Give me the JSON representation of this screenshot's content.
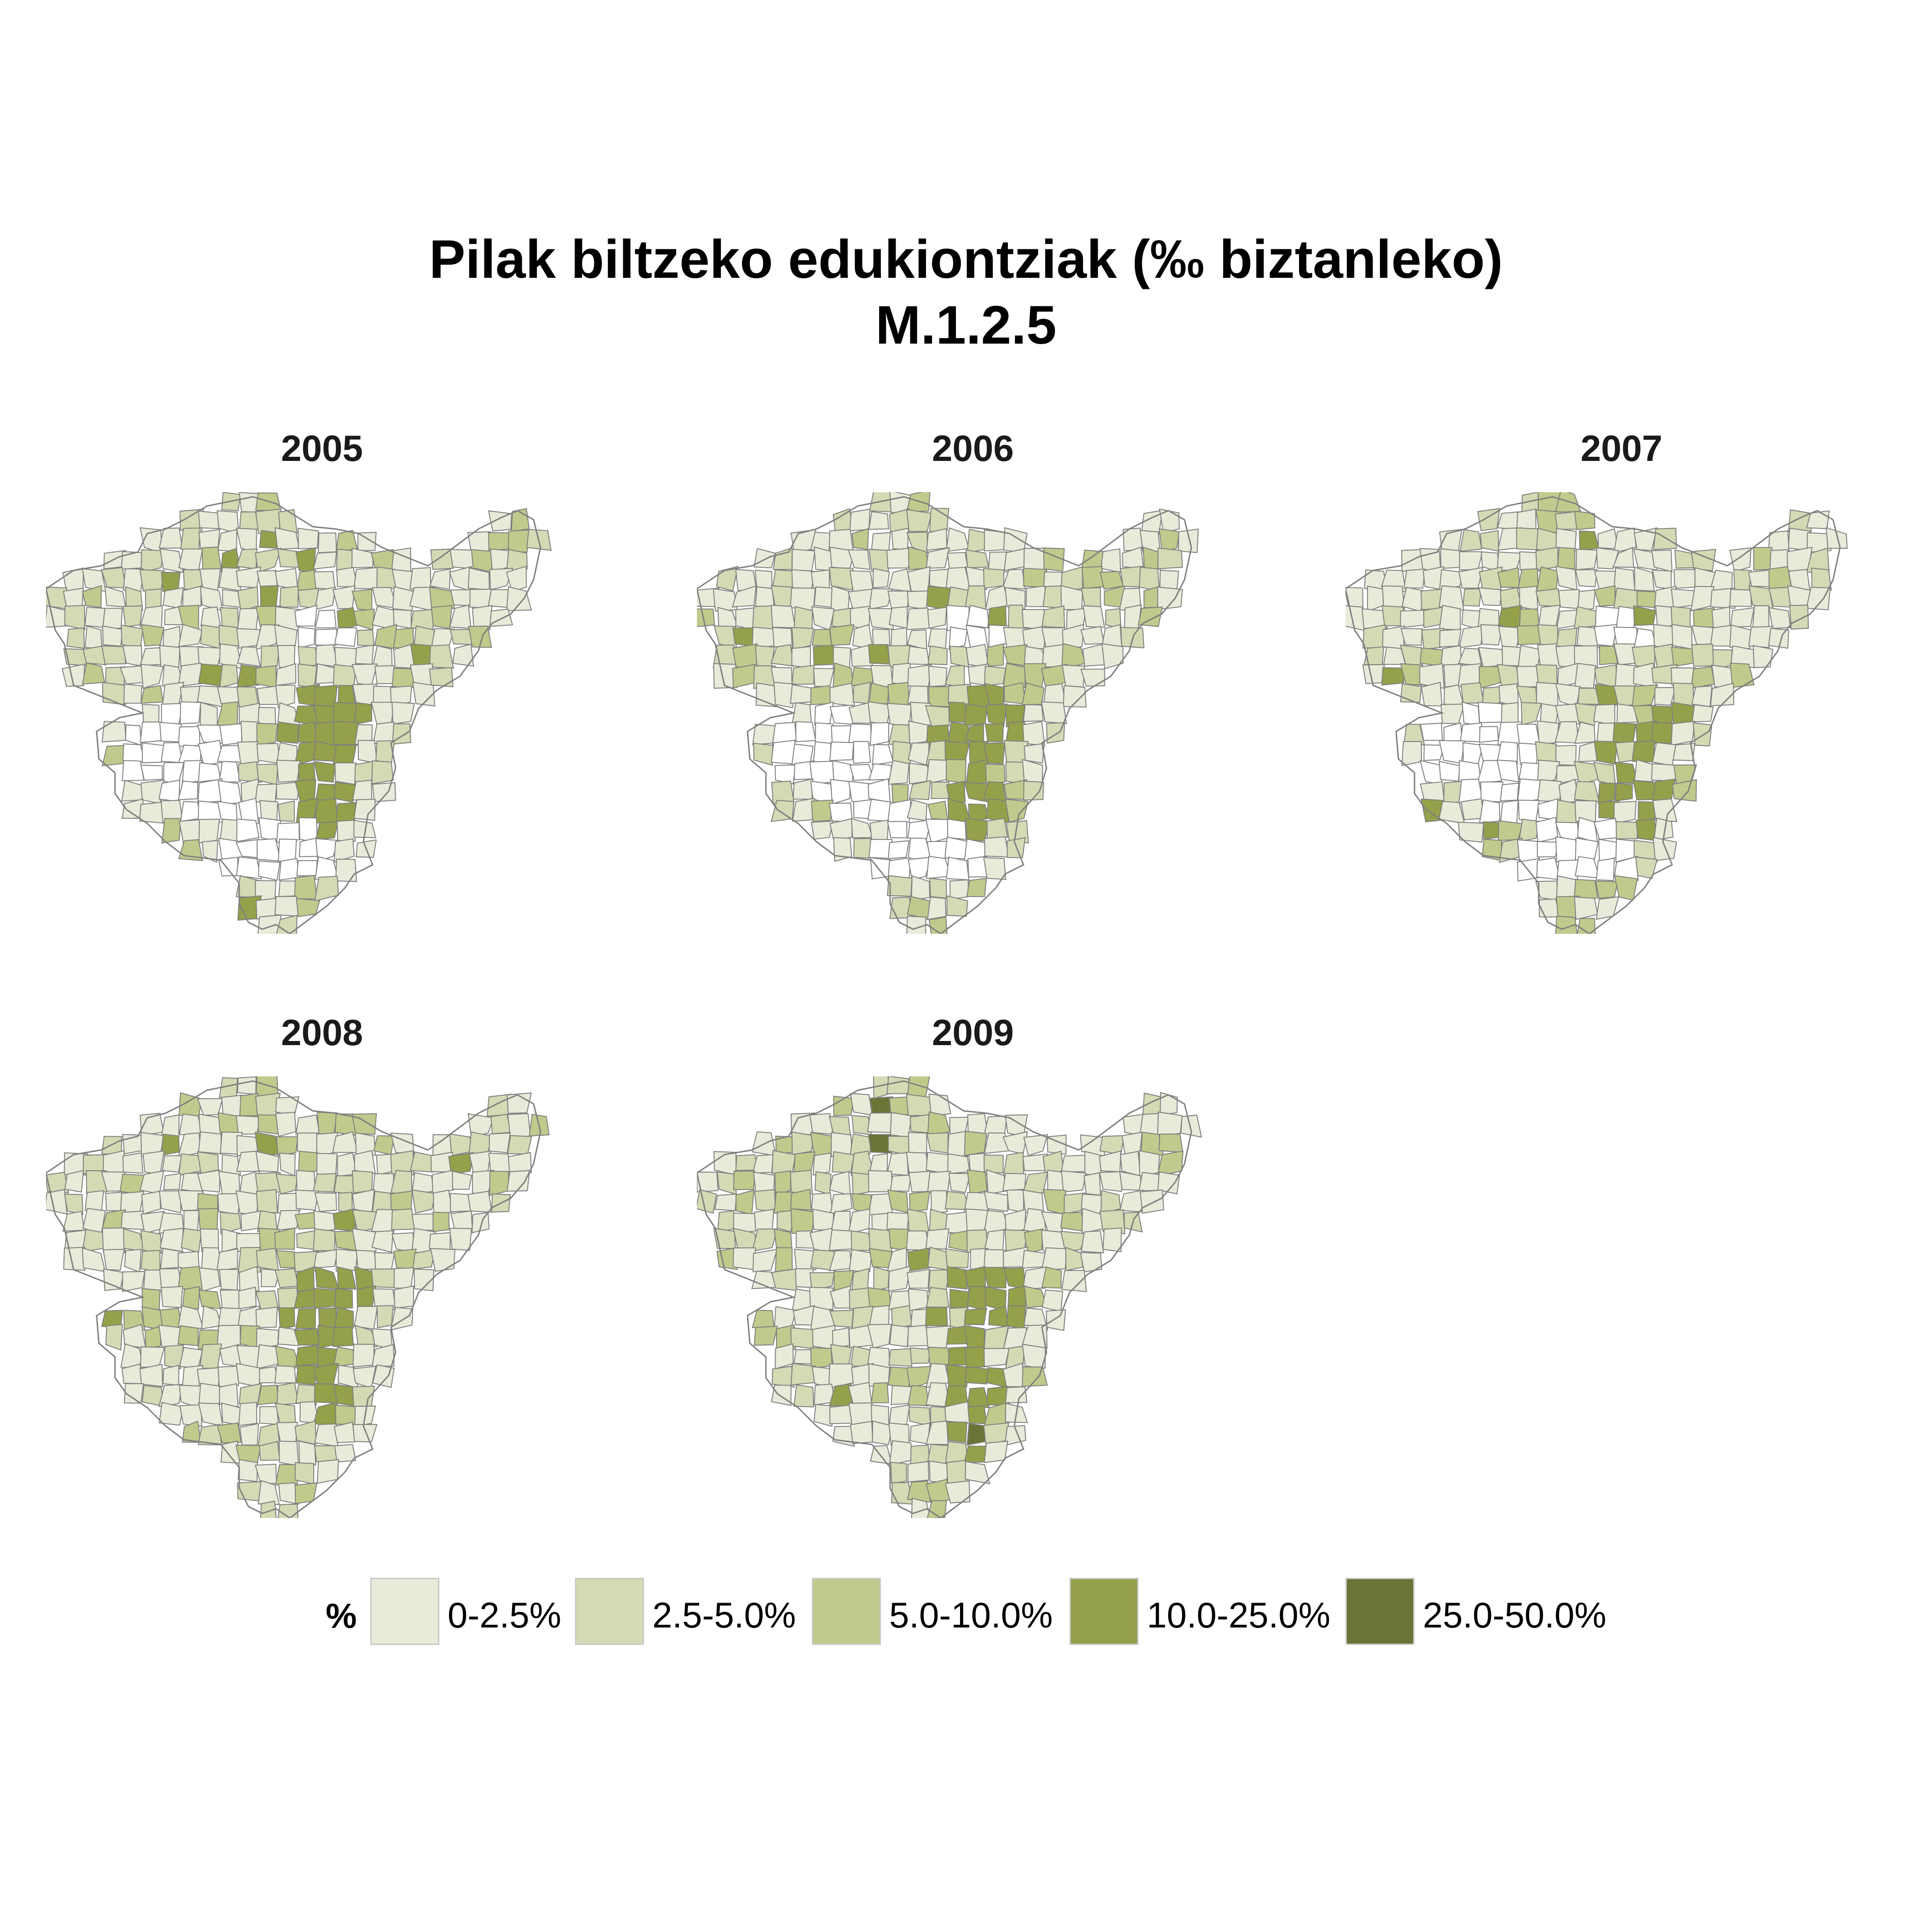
{
  "title": "Pilak biltzeko edukiontziak (‰ biztanleko)",
  "subtitle": "M.1.2.5",
  "legend": {
    "title": "%",
    "items": [
      {
        "label": "0-2.5%",
        "color": "#e8ebd9"
      },
      {
        "label": "2.5-5.0%",
        "color": "#d4dab4"
      },
      {
        "label": "5.0-10.0%",
        "color": "#c1ca8c"
      },
      {
        "label": "10.0-25.0%",
        "color": "#95a04a"
      },
      {
        "label": "25.0-50.0%",
        "color": "#6b7437"
      }
    ]
  },
  "panels": [
    {
      "year": "2005"
    },
    {
      "year": "2006"
    },
    {
      "year": "2007"
    },
    {
      "year": "2008"
    },
    {
      "year": "2009"
    }
  ],
  "colors": {
    "no_data": "#ffffff",
    "border": "#7f7f7f"
  }
}
